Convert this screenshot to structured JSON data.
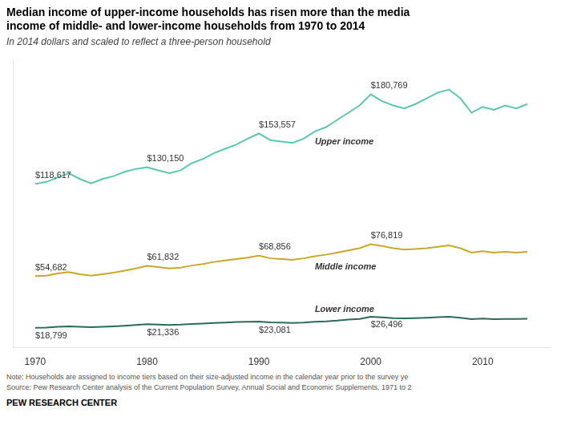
{
  "chart_data": {
    "type": "line",
    "title": [
      "Median income of upper-income households has risen more than the media",
      "income of middle- and lower-income households from 1970 to 2014"
    ],
    "subtitle": "In 2014 dollars and scaled to reflect a three-person household",
    "notes": [
      "Note: Households are assigned to income tiers based on their size-adjusted income in the calendar year prior to the survey ye",
      "Source: Pew Research Center analysis of the Current Population Survey, Annual Social and Economic Supplements, 1971 to 2"
    ],
    "footer": "PEW RESEARCH CENTER",
    "x": [
      1970,
      1971,
      1972,
      1973,
      1974,
      1975,
      1976,
      1977,
      1978,
      1979,
      1980,
      1981,
      1982,
      1983,
      1984,
      1985,
      1986,
      1987,
      1988,
      1989,
      1990,
      1991,
      1992,
      1993,
      1994,
      1995,
      1996,
      1997,
      1998,
      1999,
      2000,
      2001,
      2002,
      2003,
      2004,
      2005,
      2006,
      2007,
      2008,
      2009,
      2010,
      2011,
      2012,
      2013,
      2014
    ],
    "series": [
      {
        "name": "Upper income",
        "color": "#5bc8b0",
        "values": [
          118617,
          120000,
          123000,
          126000,
          122000,
          119000,
          122000,
          124000,
          127000,
          129000,
          130150,
          128000,
          126000,
          128000,
          133000,
          136000,
          140000,
          143000,
          146000,
          150000,
          153557,
          149000,
          148000,
          147000,
          150000,
          155000,
          158000,
          163000,
          168000,
          173000,
          180769,
          176000,
          173000,
          171000,
          174000,
          178000,
          182000,
          184000,
          178000,
          168000,
          172000,
          170000,
          173000,
          171000,
          174000
        ],
        "value_labels": [
          "$118,617",
          null,
          null,
          null,
          null,
          null,
          null,
          null,
          null,
          null,
          "$130,150",
          null,
          null,
          null,
          null,
          null,
          null,
          null,
          null,
          null,
          "$153,557",
          null,
          null,
          null,
          null,
          null,
          null,
          null,
          null,
          null,
          "$180,769",
          null,
          null,
          null,
          null,
          null,
          null,
          null,
          null,
          null,
          null,
          null,
          null,
          null,
          null
        ]
      },
      {
        "name": "Middle income",
        "color": "#c8a82a",
        "values": [
          54682,
          55000,
          56500,
          57500,
          56000,
          55000,
          56000,
          57000,
          58500,
          60000,
          61832,
          61000,
          60000,
          60500,
          62000,
          63000,
          64500,
          65500,
          66500,
          67500,
          68856,
          67000,
          66500,
          66000,
          67000,
          68500,
          69500,
          71000,
          72500,
          74000,
          76819,
          75500,
          74000,
          73000,
          73500,
          74000,
          75000,
          76000,
          74000,
          71000,
          72000,
          71000,
          71500,
          71000,
          71500
        ],
        "value_labels": [
          "$54,682",
          null,
          null,
          null,
          null,
          null,
          null,
          null,
          null,
          null,
          "$61,832",
          null,
          null,
          null,
          null,
          null,
          null,
          null,
          null,
          null,
          "$68,856",
          null,
          null,
          null,
          null,
          null,
          null,
          null,
          null,
          null,
          "$76,819",
          null,
          null,
          null,
          null,
          null,
          null,
          null,
          null,
          null,
          null,
          null,
          null,
          null,
          null
        ]
      },
      {
        "name": "Lower income",
        "color": "#2a6b5a",
        "values": [
          18799,
          19000,
          19500,
          19800,
          19500,
          19200,
          19500,
          19800,
          20200,
          20700,
          21336,
          21000,
          20800,
          21000,
          21500,
          21800,
          22200,
          22500,
          22800,
          23000,
          23081,
          22600,
          22400,
          22200,
          22500,
          23000,
          23300,
          23800,
          24500,
          25000,
          26496,
          26000,
          25500,
          25300,
          25500,
          25800,
          26200,
          26500,
          25800,
          24800,
          25200,
          24800,
          25000,
          24900,
          25100
        ],
        "value_labels": [
          "$18,799",
          null,
          null,
          null,
          null,
          null,
          null,
          null,
          null,
          null,
          "$21,336",
          null,
          null,
          null,
          null,
          null,
          null,
          null,
          null,
          null,
          "$23,081",
          null,
          null,
          null,
          null,
          null,
          null,
          null,
          null,
          null,
          "$26,496",
          null,
          null,
          null,
          null,
          null,
          null,
          null,
          null,
          null,
          null,
          null,
          null,
          null,
          null
        ]
      }
    ],
    "xlim": [
      1968,
      2016
    ],
    "xticks": [
      1970,
      1980,
      1990,
      2000,
      2010
    ],
    "ylim": [
      5000,
      205000
    ],
    "grid": false,
    "tick_labels": "x",
    "data_labels": true
  }
}
